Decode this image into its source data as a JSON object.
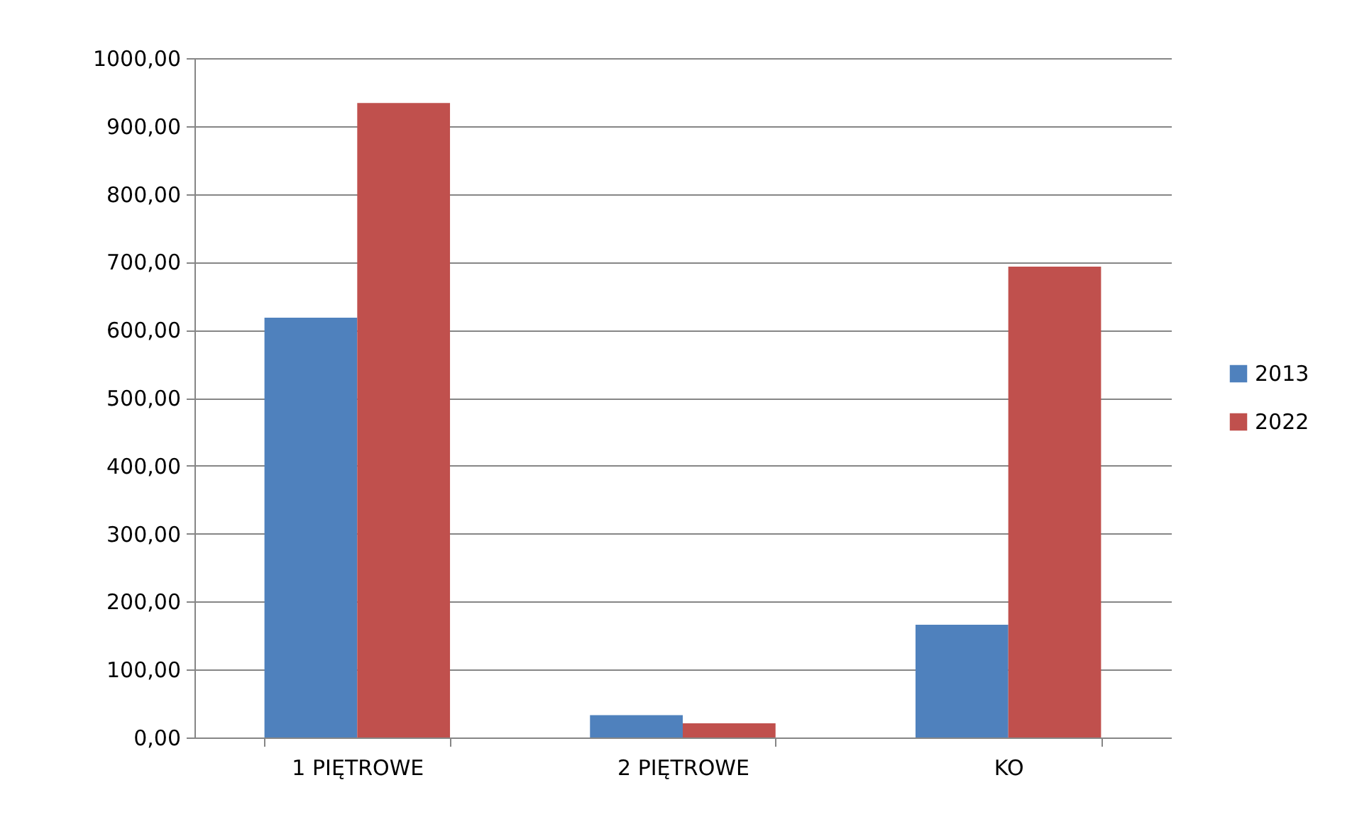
{
  "chart_data": {
    "type": "bar",
    "categories": [
      "1 PIĘTROWE",
      "2 PIĘTROWE",
      "KO"
    ],
    "series": [
      {
        "name": "2013",
        "color": "#4f81bd",
        "values": [
          618,
          33,
          166
        ]
      },
      {
        "name": "2022",
        "color": "#c0504d",
        "values": [
          934,
          21,
          693
        ]
      }
    ],
    "ylim": [
      0,
      1000
    ],
    "yticks": [
      {
        "value": 0,
        "label": "0,00"
      },
      {
        "value": 100,
        "label": "100,00"
      },
      {
        "value": 200,
        "label": "200,00"
      },
      {
        "value": 300,
        "label": "300,00"
      },
      {
        "value": 400,
        "label": "400,00"
      },
      {
        "value": 500,
        "label": "500,00"
      },
      {
        "value": 600,
        "label": "600,00"
      },
      {
        "value": 700,
        "label": "700,00"
      },
      {
        "value": 800,
        "label": "800,00"
      },
      {
        "value": 900,
        "label": "900,00"
      },
      {
        "value": 1000,
        "label": "1000,00"
      }
    ],
    "grid": "y",
    "legend": "right"
  }
}
